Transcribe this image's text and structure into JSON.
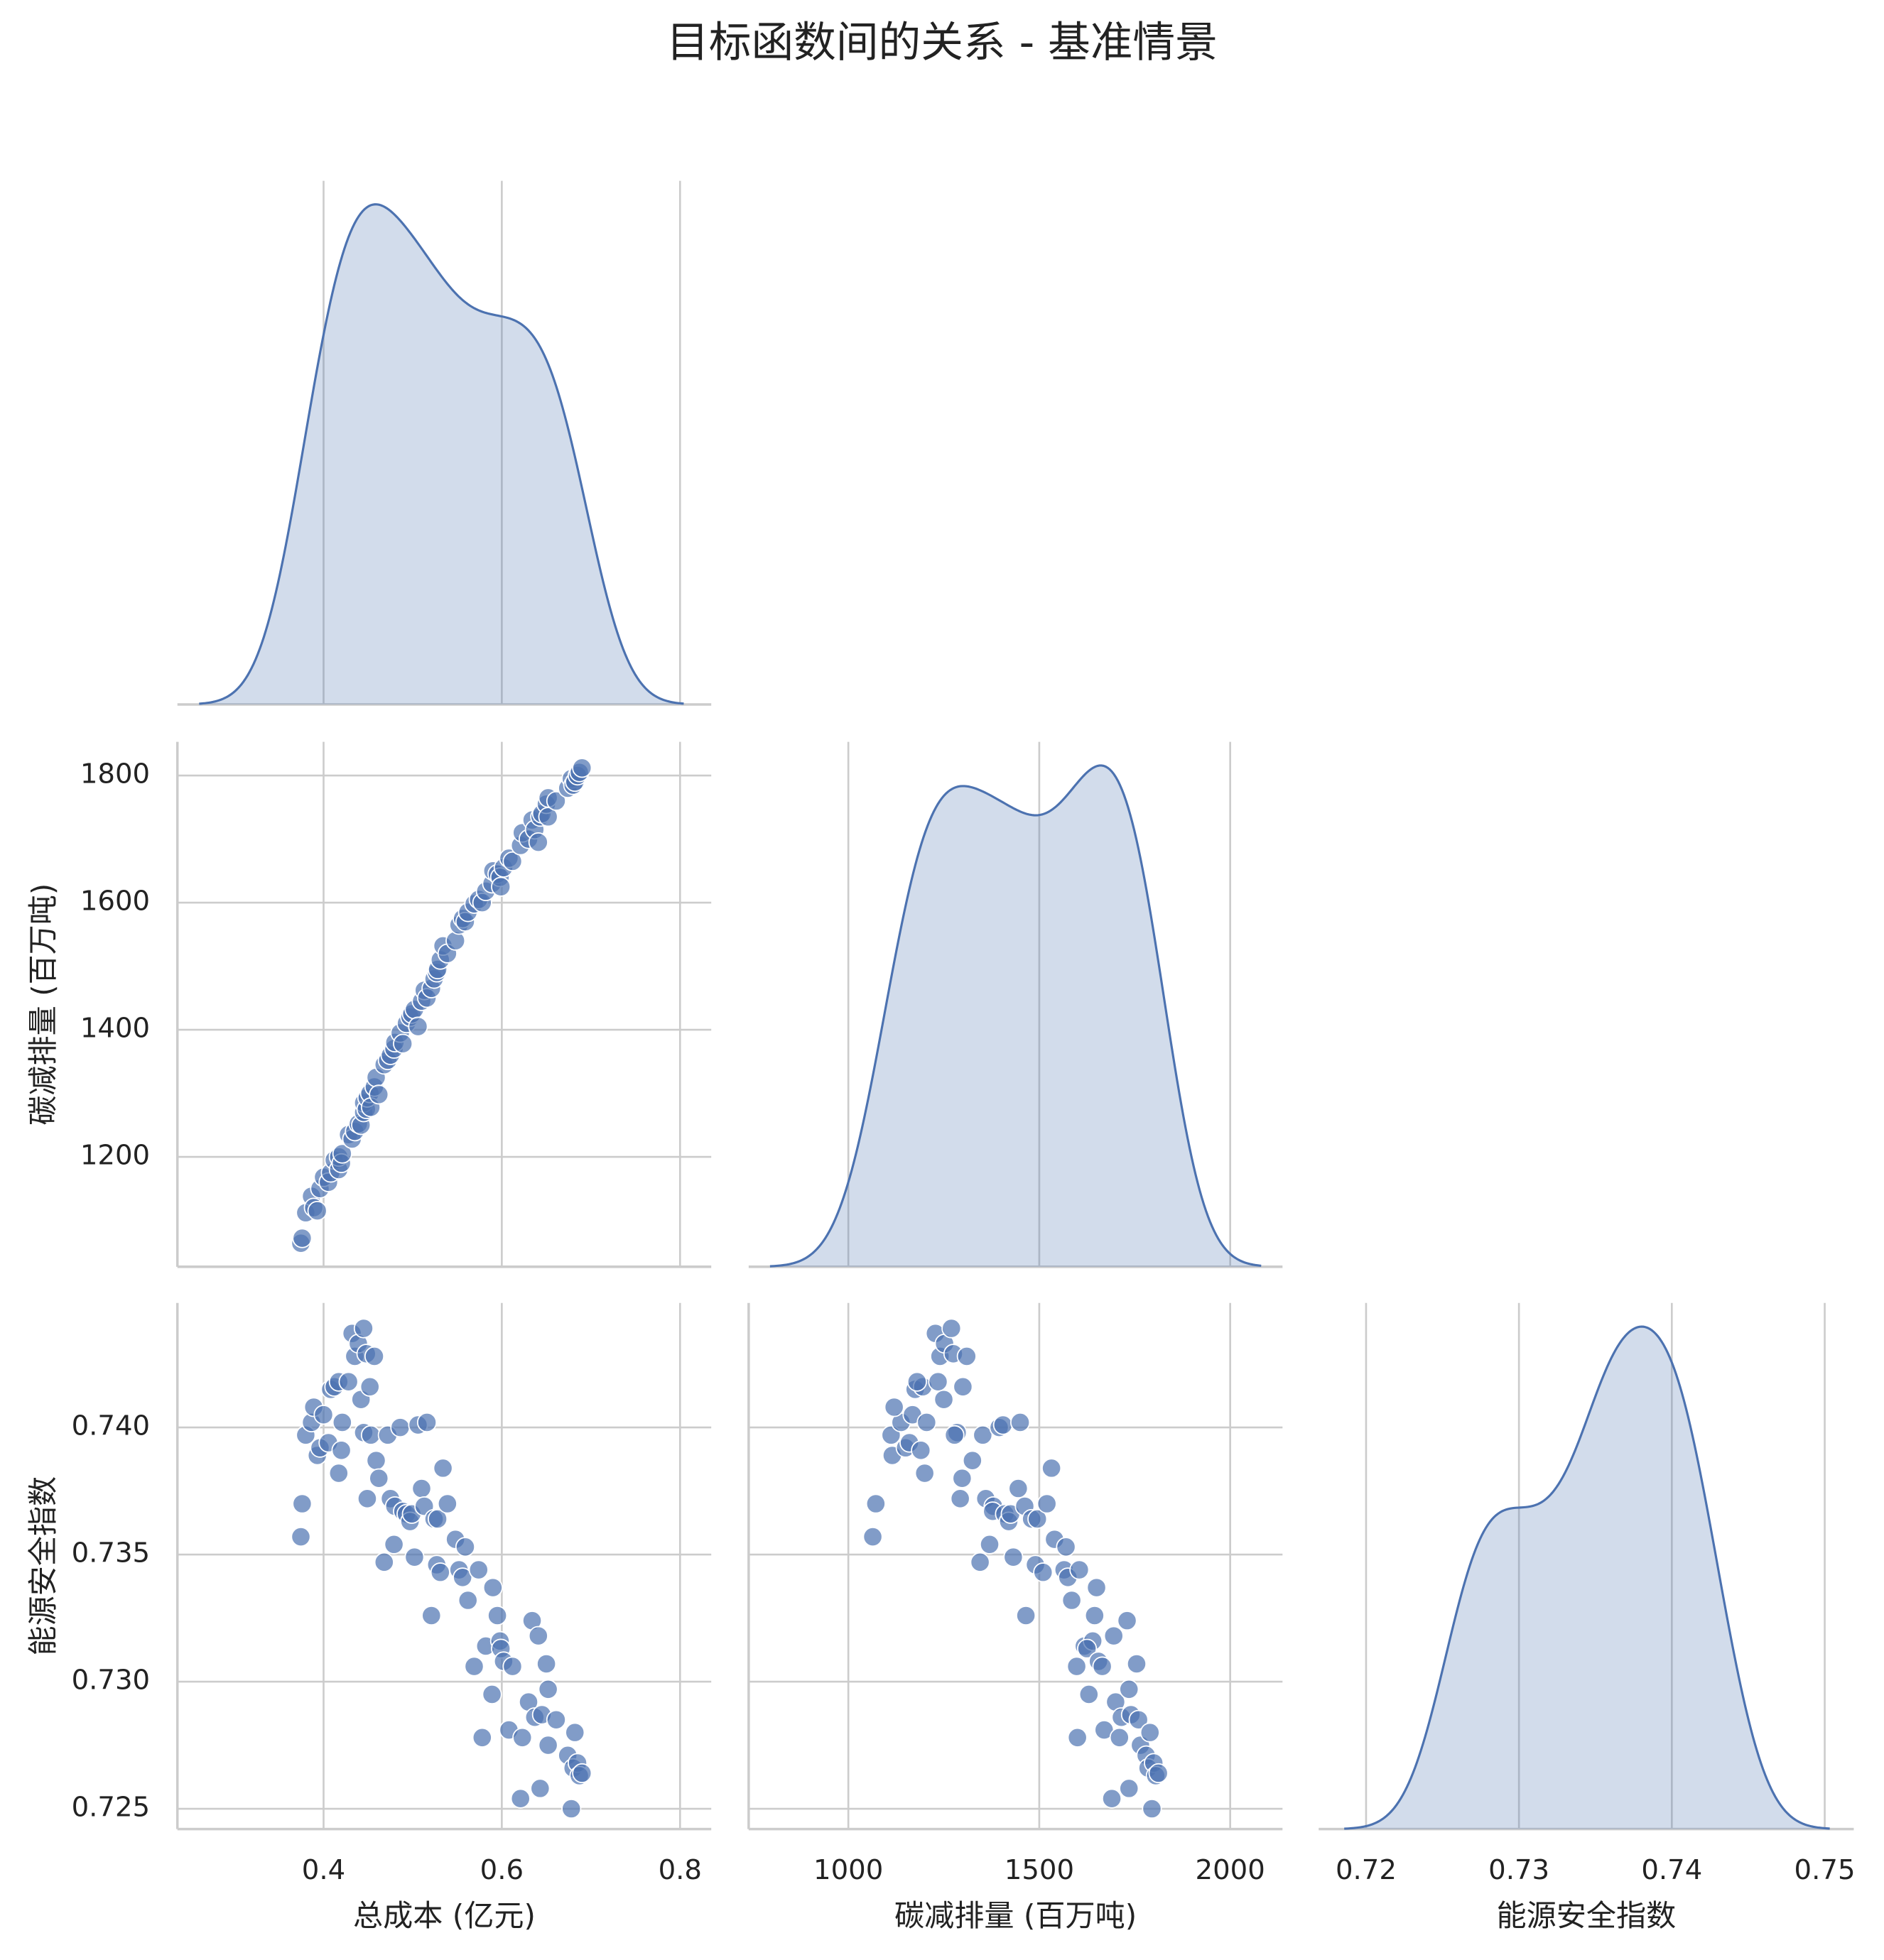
{
  "chart_data": {
    "type": "pairplot",
    "title": "目标函数间的关系 - 基准情景",
    "color": "#4c72b0",
    "corner": true,
    "grid": true,
    "diag_kind": "kde",
    "variables": [
      {
        "label": "总成本 (亿元)",
        "values": [
          0.3745,
          0.376,
          0.38,
          0.3865,
          0.389,
          0.393,
          0.396,
          0.4,
          0.4055,
          0.408,
          0.412,
          0.417,
          0.417,
          0.42,
          0.421,
          0.428,
          0.432,
          0.435,
          0.439,
          0.442,
          0.445,
          0.445,
          0.448,
          0.449,
          0.452,
          0.453,
          0.457,
          0.459,
          0.462,
          0.468,
          0.472,
          0.475,
          0.479,
          0.48,
          0.486,
          0.489,
          0.493,
          0.497,
          0.499,
          0.502,
          0.506,
          0.51,
          0.513,
          0.516,
          0.521,
          0.524,
          0.527,
          0.528,
          0.531,
          0.534,
          0.539,
          0.548,
          0.552,
          0.556,
          0.559,
          0.562,
          0.569,
          0.574,
          0.578,
          0.582,
          0.589,
          0.59,
          0.595,
          0.598,
          0.599,
          0.602,
          0.608,
          0.612,
          0.621,
          0.623,
          0.63,
          0.634,
          0.637,
          0.641,
          0.643,
          0.645,
          0.65,
          0.652,
          0.652,
          0.661,
          0.674,
          0.678,
          0.68,
          0.682,
          0.685,
          0.687,
          0.69
        ],
        "xlim": [
          0.236,
          0.835
        ],
        "xticks": [
          0.4,
          0.6,
          0.8
        ]
      },
      {
        "label": "碳减排量 (百万吨)",
        "values": [
          1064,
          1072,
          1112,
          1138,
          1120,
          1115,
          1150,
          1168,
          1160,
          1175,
          1195,
          1180,
          1200,
          1190,
          1205,
          1235,
          1228,
          1240,
          1252,
          1250,
          1270,
          1285,
          1275,
          1293,
          1300,
          1278,
          1310,
          1325,
          1298,
          1345,
          1352,
          1360,
          1370,
          1380,
          1395,
          1378,
          1410,
          1420,
          1425,
          1432,
          1405,
          1445,
          1462,
          1450,
          1465,
          1480,
          1490,
          1495,
          1510,
          1532,
          1520,
          1540,
          1565,
          1575,
          1570,
          1585,
          1598,
          1605,
          1600,
          1618,
          1630,
          1650,
          1645,
          1640,
          1625,
          1655,
          1670,
          1665,
          1690,
          1710,
          1700,
          1730,
          1715,
          1695,
          1735,
          1740,
          1755,
          1735,
          1765,
          1760,
          1780,
          1795,
          1785,
          1790,
          1800,
          1805,
          1812
        ],
        "xlim": [
          739,
          2137
        ],
        "xticks": [
          1000,
          1500,
          2000
        ],
        "ylim": [
          1027,
          1853
        ],
        "yticks": [
          1200,
          1400,
          1600,
          1800
        ]
      },
      {
        "label": "能源安全指数",
        "values": [
          0.7357,
          0.737,
          0.7397,
          0.7402,
          0.7408,
          0.7389,
          0.7392,
          0.7405,
          0.7394,
          0.7415,
          0.7416,
          0.7418,
          0.7382,
          0.7391,
          0.7402,
          0.7418,
          0.7437,
          0.7428,
          0.7433,
          0.7411,
          0.7439,
          0.7398,
          0.7429,
          0.7372,
          0.7416,
          0.7397,
          0.7428,
          0.7387,
          0.738,
          0.7347,
          0.7397,
          0.7372,
          0.7354,
          0.7369,
          0.74,
          0.7367,
          0.7366,
          0.7363,
          0.7366,
          0.7349,
          0.7401,
          0.7376,
          0.7369,
          0.7402,
          0.7326,
          0.7364,
          0.7346,
          0.7364,
          0.7343,
          0.7384,
          0.737,
          0.7356,
          0.7344,
          0.7341,
          0.7353,
          0.7332,
          0.7306,
          0.7344,
          0.7278,
          0.7314,
          0.7295,
          0.7337,
          0.7326,
          0.7316,
          0.7313,
          0.7308,
          0.7281,
          0.7306,
          0.7254,
          0.7278,
          0.7292,
          0.7324,
          0.7286,
          0.7318,
          0.7258,
          0.7287,
          0.7307,
          0.7297,
          0.7275,
          0.7285,
          0.7271,
          0.725,
          0.7266,
          0.728,
          0.7268,
          0.7263,
          0.7264
        ],
        "xlim": [
          0.7169,
          0.7519
        ],
        "xticks": [
          0.72,
          0.73,
          0.74,
          0.75
        ],
        "ylim": [
          0.7242,
          0.7449
        ],
        "yticks": [
          0.725,
          {
            "value": 0.73,
            "label": "0.730"
          },
          0.735,
          {
            "value": 0.74,
            "label": "0.740"
          }
        ]
      }
    ]
  }
}
